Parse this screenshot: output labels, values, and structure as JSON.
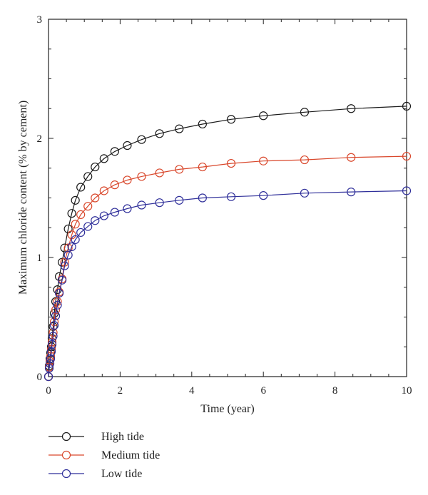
{
  "chart_data": {
    "type": "line",
    "title": "",
    "xlabel": "Time (year)",
    "ylabel": "Maximum chloride content (% by cement)",
    "xlim": [
      0,
      10
    ],
    "ylim": [
      0,
      3
    ],
    "x_ticks": [
      0,
      2,
      4,
      6,
      8,
      10
    ],
    "y_ticks": [
      0,
      1,
      2,
      3
    ],
    "grid": false,
    "legend_position": "bottom-left",
    "marker": "open-circle",
    "x_marker": [
      0,
      0.02,
      0.04,
      0.06,
      0.08,
      0.1,
      0.13,
      0.16,
      0.2,
      0.25,
      0.3,
      0.38,
      0.45,
      0.55,
      0.65,
      0.75,
      0.9,
      1.1,
      1.3,
      1.55,
      1.85,
      2.2,
      2.6,
      3.1,
      3.65,
      4.3,
      5.1,
      6.0,
      7.15,
      8.45,
      10.0
    ],
    "series": [
      {
        "name": "High tide",
        "color": "#1a1a1a",
        "values": [
          0,
          0.09,
          0.15,
          0.2,
          0.25,
          0.32,
          0.42,
          0.53,
          0.63,
          0.73,
          0.84,
          0.96,
          1.08,
          1.24,
          1.37,
          1.48,
          1.59,
          1.68,
          1.76,
          1.83,
          1.89,
          1.94,
          1.99,
          2.04,
          2.08,
          2.12,
          2.16,
          2.19,
          2.22,
          2.25,
          2.27
        ]
      },
      {
        "name": "Medium tide",
        "color": "#d9472b",
        "values": [
          0,
          0.08,
          0.13,
          0.17,
          0.23,
          0.29,
          0.37,
          0.46,
          0.56,
          0.63,
          0.71,
          0.82,
          0.96,
          1.08,
          1.19,
          1.28,
          1.36,
          1.43,
          1.5,
          1.56,
          1.61,
          1.65,
          1.68,
          1.71,
          1.74,
          1.76,
          1.79,
          1.81,
          1.82,
          1.84,
          1.85
        ]
      },
      {
        "name": "Low tide",
        "color": "#2f2f9a",
        "values": [
          0,
          0.07,
          0.11,
          0.15,
          0.21,
          0.27,
          0.34,
          0.43,
          0.51,
          0.6,
          0.7,
          0.81,
          0.93,
          1.02,
          1.09,
          1.15,
          1.21,
          1.26,
          1.31,
          1.35,
          1.38,
          1.41,
          1.44,
          1.46,
          1.48,
          1.5,
          1.51,
          1.52,
          1.54,
          1.55,
          1.56
        ]
      }
    ]
  }
}
